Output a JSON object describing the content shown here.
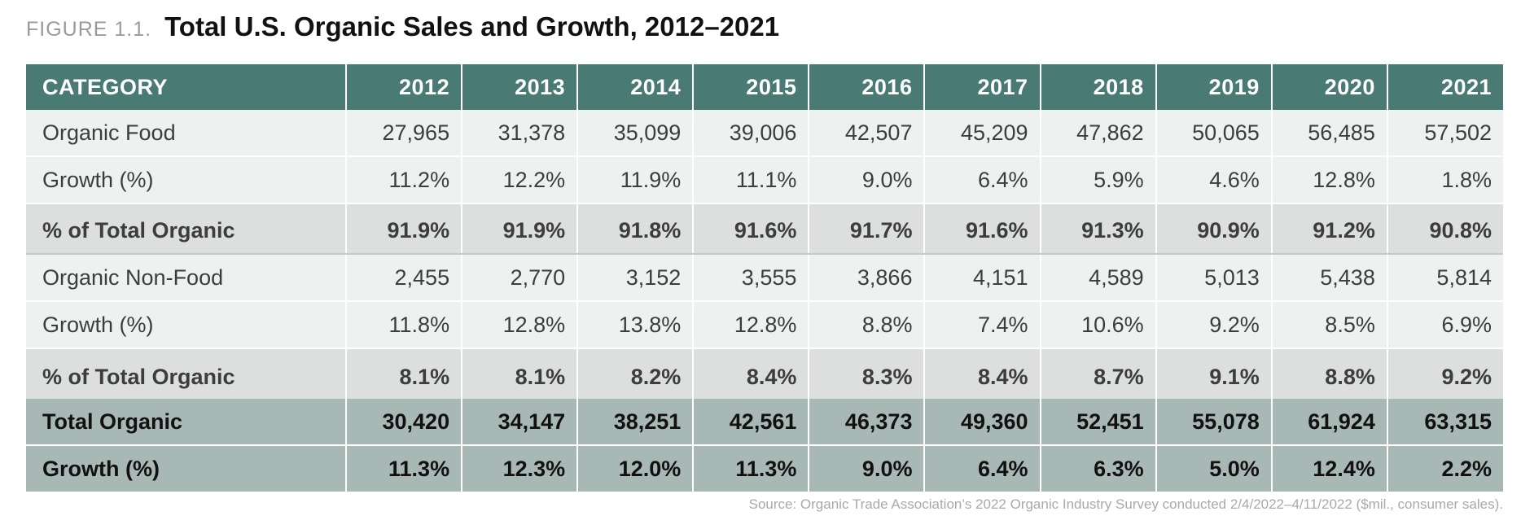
{
  "figure": {
    "label": "FIGURE 1.1.",
    "title": "Total U.S. Organic Sales and Growth, 2012–2021"
  },
  "table": {
    "header_label": "CATEGORY",
    "years": [
      "2012",
      "2013",
      "2014",
      "2015",
      "2016",
      "2017",
      "2018",
      "2019",
      "2020",
      "2021"
    ],
    "rows": [
      {
        "label": "Organic Food",
        "style": "light",
        "values": [
          "27,965",
          "31,378",
          "35,099",
          "39,006",
          "42,507",
          "45,209",
          "47,862",
          "50,065",
          "56,485",
          "57,502"
        ]
      },
      {
        "label": "Growth (%)",
        "style": "light",
        "values": [
          "11.2%",
          "12.2%",
          "11.9%",
          "11.1%",
          "9.0%",
          "6.4%",
          "5.9%",
          "4.6%",
          "12.8%",
          "1.8%"
        ]
      },
      {
        "label": "% of Total Organic",
        "style": "share",
        "values": [
          "91.9%",
          "91.9%",
          "91.8%",
          "91.6%",
          "91.7%",
          "91.6%",
          "91.3%",
          "90.9%",
          "91.2%",
          "90.8%"
        ]
      },
      {
        "label": "Organic Non-Food",
        "style": "light",
        "values": [
          "2,455",
          "2,770",
          "3,152",
          "3,555",
          "3,866",
          "4,151",
          "4,589",
          "5,013",
          "5,438",
          "5,814"
        ]
      },
      {
        "label": "Growth (%)",
        "style": "light",
        "values": [
          "11.8%",
          "12.8%",
          "13.8%",
          "12.8%",
          "8.8%",
          "7.4%",
          "10.6%",
          "9.2%",
          "8.5%",
          "6.9%"
        ]
      },
      {
        "label": "% of Total Organic",
        "style": "share-b",
        "values": [
          "8.1%",
          "8.1%",
          "8.2%",
          "8.4%",
          "8.3%",
          "8.4%",
          "8.7%",
          "9.1%",
          "8.8%",
          "9.2%"
        ]
      },
      {
        "label": "Total Organic",
        "style": "total",
        "values": [
          "30,420",
          "34,147",
          "38,251",
          "42,561",
          "46,373",
          "49,360",
          "52,451",
          "55,078",
          "61,924",
          "63,315"
        ]
      },
      {
        "label": "Growth (%)",
        "style": "total",
        "values": [
          "11.3%",
          "12.3%",
          "12.0%",
          "11.3%",
          "9.0%",
          "6.4%",
          "6.3%",
          "5.0%",
          "12.4%",
          "2.2%"
        ]
      }
    ]
  },
  "source_note": "Source: Organic Trade Association’s 2022 Organic Industry Survey conducted 2/4/2022–4/11/2022 ($mil., consumer sales).",
  "colors": {
    "header_bg": "#4a7a74",
    "light_row_bg": "#edf1f0",
    "share_row_bg": "#dcdfdd",
    "total_row_bg": "#a8b8b5"
  }
}
